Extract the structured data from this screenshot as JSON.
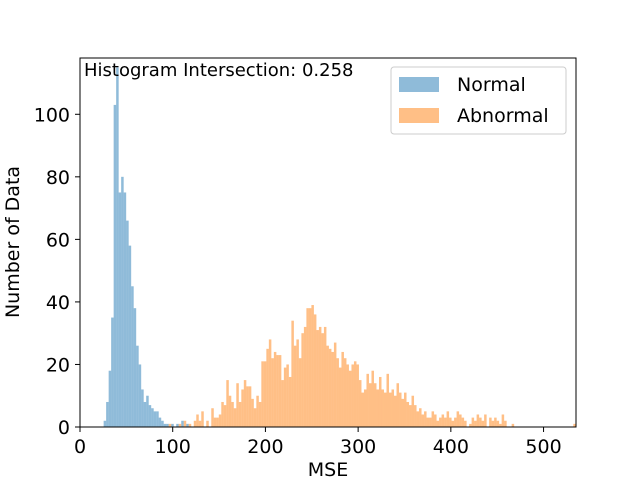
{
  "chart_data": {
    "type": "bar",
    "annotation": "Histogram Intersection: 0.258",
    "xlabel": "MSE",
    "ylabel": "Number of Data",
    "xlim": [
      0,
      535
    ],
    "ylim": [
      0,
      118
    ],
    "xticks": [
      0,
      100,
      200,
      300,
      400,
      500
    ],
    "yticks": [
      0,
      20,
      40,
      60,
      80,
      100
    ],
    "grid": false,
    "legend_position": "upper right",
    "bin_width": 2.7,
    "series": [
      {
        "name": "Normal",
        "color": "#1f77b4",
        "opacity": 0.5,
        "bins": [
          [
            25.5,
            2
          ],
          [
            28.2,
            8
          ],
          [
            30.9,
            18
          ],
          [
            33.6,
            35
          ],
          [
            36.3,
            103
          ],
          [
            39.0,
            115
          ],
          [
            41.7,
            75
          ],
          [
            44.4,
            80
          ],
          [
            47.1,
            75
          ],
          [
            49.8,
            66
          ],
          [
            52.5,
            58
          ],
          [
            55.2,
            45
          ],
          [
            57.9,
            38
          ],
          [
            60.6,
            26
          ],
          [
            63.3,
            20
          ],
          [
            66.0,
            12
          ],
          [
            68.7,
            8
          ],
          [
            71.4,
            10
          ],
          [
            74.1,
            7
          ],
          [
            76.8,
            6
          ],
          [
            79.5,
            5
          ],
          [
            82.2,
            5
          ],
          [
            84.9,
            3
          ],
          [
            87.6,
            2
          ],
          [
            90.3,
            1
          ],
          [
            93.0,
            1
          ],
          [
            98.4,
            1
          ],
          [
            103.8,
            1
          ],
          [
            109.2,
            2
          ],
          [
            114.6,
            1
          ]
        ]
      },
      {
        "name": "Abnormal",
        "color": "#ff7f0e",
        "opacity": 0.5,
        "bins": [
          [
            95.7,
            1
          ],
          [
            106.5,
            1
          ],
          [
            111.9,
            2
          ],
          [
            117.3,
            1
          ],
          [
            122.7,
            2
          ],
          [
            125.4,
            4
          ],
          [
            128.1,
            2
          ],
          [
            130.8,
            5
          ],
          [
            136.2,
            2
          ],
          [
            141.6,
            6
          ],
          [
            144.3,
            3
          ],
          [
            147.0,
            3
          ],
          [
            149.7,
            4
          ],
          [
            152.4,
            8
          ],
          [
            155.1,
            7
          ],
          [
            157.8,
            15
          ],
          [
            160.5,
            10
          ],
          [
            163.2,
            8
          ],
          [
            165.9,
            6
          ],
          [
            168.6,
            14
          ],
          [
            171.3,
            8
          ],
          [
            174.0,
            12
          ],
          [
            176.7,
            15
          ],
          [
            179.4,
            13
          ],
          [
            182.1,
            13
          ],
          [
            184.8,
            9
          ],
          [
            187.5,
            6
          ],
          [
            190.2,
            10
          ],
          [
            192.9,
            8
          ],
          [
            195.6,
            21
          ],
          [
            198.3,
            21
          ],
          [
            201.0,
            25
          ],
          [
            203.7,
            28
          ],
          [
            206.4,
            22
          ],
          [
            209.1,
            24
          ],
          [
            211.8,
            23
          ],
          [
            214.5,
            23
          ],
          [
            217.2,
            15
          ],
          [
            219.9,
            19
          ],
          [
            222.6,
            20
          ],
          [
            225.3,
            16
          ],
          [
            228.0,
            34
          ],
          [
            230.7,
            26
          ],
          [
            233.4,
            28
          ],
          [
            236.1,
            22
          ],
          [
            238.8,
            30
          ],
          [
            241.5,
            32
          ],
          [
            244.2,
            38
          ],
          [
            246.9,
            38
          ],
          [
            249.6,
            39
          ],
          [
            252.3,
            36
          ],
          [
            255.0,
            31
          ],
          [
            257.7,
            32
          ],
          [
            260.4,
            30
          ],
          [
            263.1,
            32
          ],
          [
            265.8,
            26
          ],
          [
            268.5,
            25
          ],
          [
            271.2,
            24
          ],
          [
            273.9,
            27
          ],
          [
            276.6,
            22
          ],
          [
            279.3,
            19
          ],
          [
            282.0,
            24
          ],
          [
            284.7,
            22
          ],
          [
            287.4,
            20
          ],
          [
            290.1,
            18
          ],
          [
            292.8,
            20
          ],
          [
            295.5,
            21
          ],
          [
            298.2,
            20
          ],
          [
            300.9,
            15
          ],
          [
            303.6,
            11
          ],
          [
            306.3,
            12
          ],
          [
            309.0,
            17
          ],
          [
            311.7,
            14
          ],
          [
            314.4,
            18
          ],
          [
            317.1,
            14
          ],
          [
            319.8,
            12
          ],
          [
            322.5,
            16
          ],
          [
            325.2,
            12
          ],
          [
            327.9,
            11
          ],
          [
            330.6,
            17
          ],
          [
            333.3,
            11
          ],
          [
            336.0,
            12
          ],
          [
            338.7,
            10
          ],
          [
            341.4,
            14
          ],
          [
            344.1,
            11
          ],
          [
            346.8,
            9
          ],
          [
            349.5,
            11
          ],
          [
            352.2,
            8
          ],
          [
            354.9,
            7
          ],
          [
            357.6,
            10
          ],
          [
            360.3,
            7
          ],
          [
            363.0,
            5
          ],
          [
            365.7,
            6
          ],
          [
            368.4,
            4
          ],
          [
            371.1,
            5
          ],
          [
            373.8,
            3
          ],
          [
            376.5,
            3
          ],
          [
            379.2,
            5
          ],
          [
            381.9,
            4
          ],
          [
            384.6,
            2
          ],
          [
            387.3,
            3
          ],
          [
            390.0,
            4
          ],
          [
            392.7,
            3
          ],
          [
            395.4,
            5
          ],
          [
            398.1,
            3
          ],
          [
            400.8,
            2
          ],
          [
            403.5,
            3
          ],
          [
            406.2,
            5
          ],
          [
            408.9,
            4
          ],
          [
            411.6,
            3
          ],
          [
            414.3,
            2
          ],
          [
            419.7,
            1
          ],
          [
            422.4,
            3
          ],
          [
            425.1,
            2
          ],
          [
            427.8,
            4
          ],
          [
            430.5,
            3
          ],
          [
            433.2,
            2
          ],
          [
            435.9,
            4
          ],
          [
            441.3,
            3
          ],
          [
            444.0,
            2
          ],
          [
            446.7,
            3
          ],
          [
            449.4,
            2
          ],
          [
            452.1,
            1
          ],
          [
            454.8,
            4
          ],
          [
            457.5,
            2
          ],
          [
            465.6,
            1
          ],
          [
            532.1,
            1
          ]
        ]
      }
    ]
  }
}
